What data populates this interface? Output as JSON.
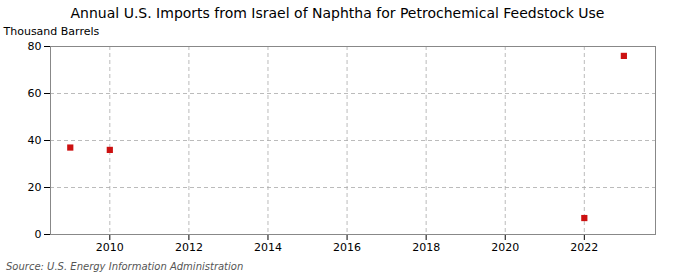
{
  "chart_data": {
    "type": "scatter",
    "title": "Annual U.S. Imports from Israel of Naphtha for Petrochemical Feedstock Use",
    "ylabel": "Thousand Barrels",
    "annotations": [
      "Source: U.S. Energy Information Administration"
    ],
    "x": [
      2009,
      2010,
      2022,
      2023
    ],
    "values": [
      37,
      36,
      7,
      76
    ],
    "color": "#cc1111",
    "marker": "square",
    "xlim": [
      2008.5,
      2023.8
    ],
    "ylim": [
      0,
      80
    ],
    "xticks": [
      2010,
      2012,
      2014,
      2016,
      2018,
      2020,
      2022
    ],
    "yticks": [
      0,
      20,
      40,
      60,
      80
    ],
    "grid": true
  }
}
